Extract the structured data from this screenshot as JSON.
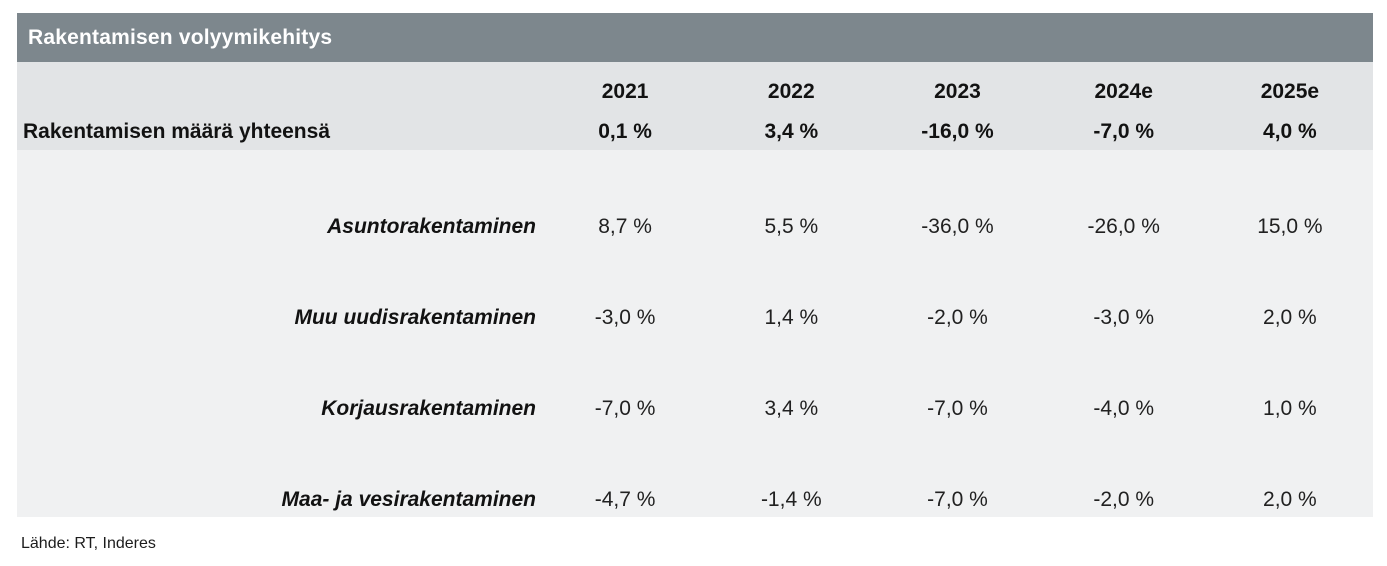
{
  "title": "Rakentamisen volyymikehitys",
  "columns": [
    "2021",
    "2022",
    "2023",
    "2024e",
    "2025e"
  ],
  "total_row": {
    "label": "Rakentamisen määrä yhteensä",
    "values": [
      "0,1 %",
      "3,4 %",
      "-16,0 %",
      "-7,0 %",
      "4,0 %"
    ]
  },
  "rows": [
    {
      "label": "Asuntorakentaminen",
      "values": [
        "8,7 %",
        "5,5 %",
        "-36,0 %",
        "-26,0 %",
        "15,0 %"
      ]
    },
    {
      "label": "Muu uudisrakentaminen",
      "values": [
        "-3,0 %",
        "1,4 %",
        "-2,0 %",
        "-3,0 %",
        "2,0 %"
      ]
    },
    {
      "label": "Korjausrakentaminen",
      "values": [
        "-7,0 %",
        "3,4 %",
        "-7,0 %",
        "-4,0 %",
        "1,0 %"
      ]
    },
    {
      "label": "Maa- ja vesirakentaminen",
      "values": [
        "-4,7 %",
        "-1,4 %",
        "-7,0 %",
        "-2,0 %",
        "2,0 %"
      ]
    }
  ],
  "source": "Lähde: RT, Inderes",
  "colors": {
    "title_bar": "#7d878d",
    "band_top": "#e2e4e6",
    "band_bottom": "#f0f1f2",
    "title_text": "#ffffff",
    "text": "#121212"
  },
  "chart_data": {
    "type": "table",
    "title": "Rakentamisen volyymikehitys",
    "categories": [
      "2021",
      "2022",
      "2023",
      "2024e",
      "2025e"
    ],
    "series": [
      {
        "name": "Rakentamisen määrä yhteensä",
        "values": [
          0.1,
          3.4,
          -16.0,
          -7.0,
          4.0
        ]
      },
      {
        "name": "Asuntorakentaminen",
        "values": [
          8.7,
          5.5,
          -36.0,
          -26.0,
          15.0
        ]
      },
      {
        "name": "Muu uudisrakentaminen",
        "values": [
          -3.0,
          1.4,
          -2.0,
          -3.0,
          2.0
        ]
      },
      {
        "name": "Korjausrakentaminen",
        "values": [
          -7.0,
          3.4,
          -7.0,
          -4.0,
          1.0
        ]
      },
      {
        "name": "Maa- ja vesirakentaminen",
        "values": [
          -4.7,
          -1.4,
          -7.0,
          -2.0,
          2.0
        ]
      }
    ],
    "unit": "%",
    "source": "Lähde: RT, Inderes"
  }
}
